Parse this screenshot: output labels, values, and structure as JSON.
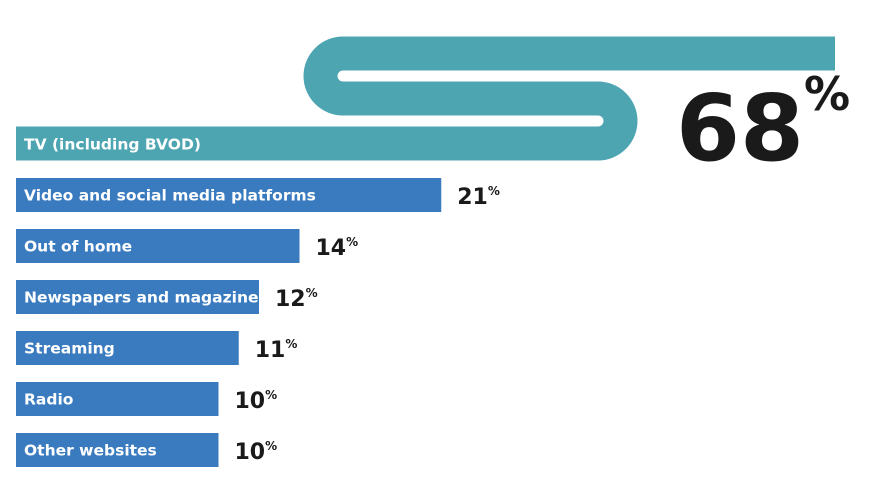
{
  "chart_data": {
    "type": "bar",
    "categories": [
      "TV (including BVOD)",
      "Video and social media platforms",
      "Out of home",
      "Newspapers and magazines",
      "Streaming",
      "Radio",
      "Other websites"
    ],
    "values": [
      68,
      21,
      14,
      12,
      11,
      10,
      10
    ],
    "unit": "%",
    "colors": [
      "#4ea5b2",
      "#3a7bc0",
      "#3a7bc0",
      "#3a7bc0",
      "#3a7bc0",
      "#3a7bc0",
      "#3a7bc0"
    ]
  }
}
